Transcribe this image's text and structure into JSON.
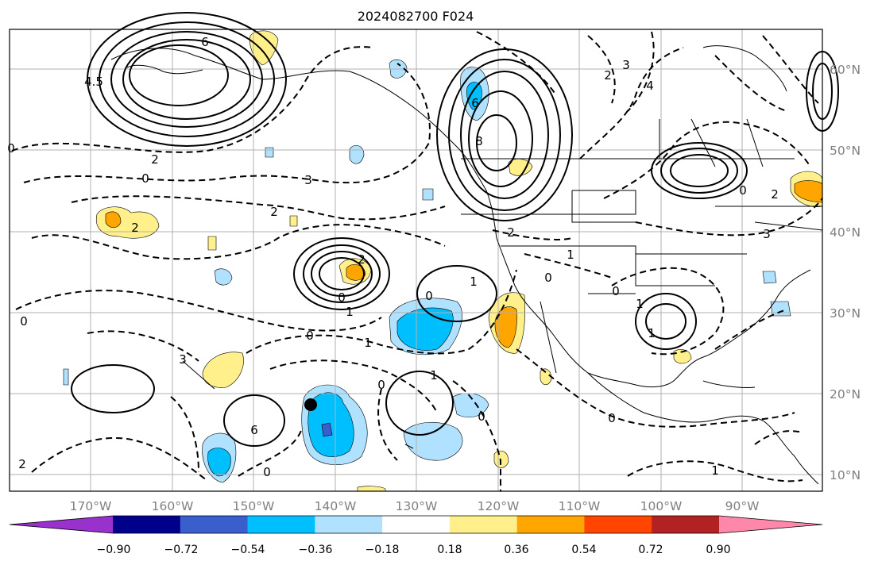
{
  "title": "2024082700 F024",
  "lon_labels": [
    "170°W",
    "160°W",
    "150°W",
    "140°W",
    "130°W",
    "120°W",
    "110°W",
    "100°W",
    "90°W"
  ],
  "lat_labels": [
    "60°N",
    "50°N",
    "40°N",
    "30°N",
    "20°N",
    "10°N"
  ],
  "colorbar": {
    "colors": [
      "#9932cc",
      "#00008b",
      "#3a5fcd",
      "#00bfff",
      "#b0e2ff",
      "#ffffff",
      "#fff08c",
      "#ffa500",
      "#ff4500",
      "#b22222",
      "#ff88aa"
    ],
    "tick_labels": [
      "−0.90",
      "−0.72",
      "−0.54",
      "−0.36",
      "−0.18",
      "0.18",
      "0.36",
      "0.54",
      "0.72",
      "0.90"
    ]
  },
  "contour_labels": [
    "6",
    "4.5",
    "2",
    "0",
    "3",
    "2",
    "0",
    "2",
    "1",
    "0",
    "2",
    "1",
    "0",
    "6",
    "8",
    "2",
    "3",
    "4",
    "3",
    "2",
    "0",
    "1",
    "0",
    "1",
    "2",
    "0",
    "1",
    "0",
    "1",
    "0",
    "1",
    "0",
    "0",
    "1",
    "0",
    "2",
    "3",
    "6",
    "0"
  ],
  "marker": {
    "label": ""
  },
  "colors": {
    "land_line": "#000000",
    "grid": "#b0b0b0",
    "axis_label": "#808080"
  }
}
